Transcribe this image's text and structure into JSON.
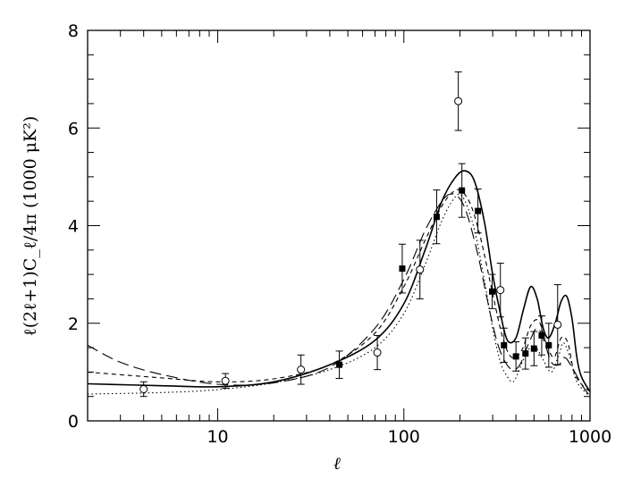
{
  "chart_data": {
    "type": "scatter",
    "xscale": "log",
    "xlim": [
      2,
      1000
    ],
    "ylim": [
      0,
      8
    ],
    "xlabel": "ℓ",
    "ylabel": "ℓ(2ℓ+1)C_ℓ/4π  (1000  μK²)",
    "grid": false,
    "legend": "none",
    "xticks": [
      {
        "value": 10,
        "label": "10"
      },
      {
        "value": 100,
        "label": "100"
      },
      {
        "value": 1000,
        "label": "1000"
      }
    ],
    "yticks": [
      {
        "value": 0,
        "label": "0"
      },
      {
        "value": 2,
        "label": "2"
      },
      {
        "value": 4,
        "label": "4"
      },
      {
        "value": 6,
        "label": "6"
      },
      {
        "value": 8,
        "label": "8"
      }
    ],
    "series": [
      {
        "style": "solid",
        "x": [
          2,
          5,
          10,
          20,
          40,
          70,
          100,
          130,
          160,
          190,
          215,
          240,
          270,
          300,
          330,
          360,
          400,
          440,
          480,
          520,
          560,
          600,
          650,
          700,
          750,
          800,
          850,
          900,
          1000
        ],
        "y": [
          0.76,
          0.72,
          0.7,
          0.8,
          1.15,
          1.65,
          2.4,
          3.5,
          4.5,
          5.0,
          5.12,
          4.9,
          4.1,
          3.0,
          2.2,
          1.65,
          1.7,
          2.3,
          2.75,
          2.5,
          1.9,
          1.7,
          2.0,
          2.45,
          2.55,
          2.1,
          1.3,
          0.9,
          0.6
        ]
      },
      {
        "style": "dotted",
        "x": [
          2,
          5,
          10,
          20,
          40,
          70,
          100,
          130,
          160,
          190,
          210,
          240,
          270,
          300,
          330,
          360,
          380,
          400,
          450,
          500,
          560,
          620,
          680,
          720,
          780,
          850,
          1000
        ],
        "y": [
          0.55,
          0.58,
          0.64,
          0.78,
          1.05,
          1.5,
          2.2,
          3.2,
          4.1,
          4.6,
          4.55,
          3.9,
          2.9,
          1.9,
          1.2,
          0.9,
          0.8,
          0.88,
          1.35,
          1.55,
          1.25,
          1.0,
          1.35,
          1.6,
          1.3,
          0.8,
          0.5
        ]
      },
      {
        "style": "short-dash",
        "x": [
          2,
          5,
          10,
          20,
          40,
          70,
          100,
          130,
          160,
          185,
          205,
          230,
          260,
          300,
          340,
          380,
          430,
          480,
          530,
          580,
          640,
          700,
          760,
          820,
          900,
          1000
        ],
        "y": [
          1.0,
          0.88,
          0.8,
          0.86,
          1.15,
          1.8,
          2.75,
          3.7,
          4.4,
          4.7,
          4.7,
          4.4,
          3.7,
          2.6,
          1.7,
          1.3,
          1.45,
          1.95,
          2.05,
          1.6,
          1.3,
          1.7,
          1.6,
          1.0,
          0.75,
          0.6
        ]
      },
      {
        "style": "long-dash",
        "x": [
          2,
          3,
          5,
          10,
          20,
          40,
          70,
          100,
          130,
          160,
          180,
          200,
          220,
          250,
          280,
          310,
          340,
          380,
          420,
          470,
          520,
          570,
          620,
          680,
          730,
          800,
          900,
          1000
        ],
        "y": [
          1.55,
          1.2,
          0.95,
          0.75,
          0.78,
          1.1,
          1.9,
          2.9,
          3.9,
          4.5,
          4.65,
          4.55,
          4.2,
          3.4,
          2.5,
          1.75,
          1.3,
          1.05,
          1.15,
          1.6,
          1.9,
          1.6,
          1.2,
          1.15,
          1.3,
          1.1,
          0.75,
          0.5
        ]
      }
    ],
    "points": [
      {
        "x": 4,
        "y": 0.65,
        "err": 0.15,
        "marker": "open-circle"
      },
      {
        "x": 11,
        "y": 0.82,
        "err": 0.15,
        "marker": "open-circle"
      },
      {
        "x": 28,
        "y": 1.05,
        "err": 0.3,
        "marker": "open-circle"
      },
      {
        "x": 45,
        "y": 1.15,
        "err": 0.28,
        "marker": "filled-square"
      },
      {
        "x": 72,
        "y": 1.4,
        "err": 0.35,
        "marker": "open-circle"
      },
      {
        "x": 98,
        "y": 3.12,
        "err": 0.5,
        "marker": "filled-square"
      },
      {
        "x": 122,
        "y": 3.1,
        "err": 0.6,
        "marker": "open-circle"
      },
      {
        "x": 150,
        "y": 4.18,
        "err": 0.55,
        "marker": "filled-square"
      },
      {
        "x": 196,
        "y": 6.55,
        "err": 0.6,
        "marker": "open-circle"
      },
      {
        "x": 205,
        "y": 4.72,
        "err": 0.55,
        "marker": "filled-square"
      },
      {
        "x": 250,
        "y": 4.3,
        "err": 0.45,
        "marker": "filled-square"
      },
      {
        "x": 298,
        "y": 2.65,
        "err": 0.35,
        "marker": "filled-square"
      },
      {
        "x": 330,
        "y": 2.68,
        "err": 0.55,
        "marker": "open-circle"
      },
      {
        "x": 345,
        "y": 1.55,
        "err": 0.35,
        "marker": "filled-square"
      },
      {
        "x": 400,
        "y": 1.32,
        "err": 0.3,
        "marker": "filled-square"
      },
      {
        "x": 450,
        "y": 1.38,
        "err": 0.32,
        "marker": "filled-square"
      },
      {
        "x": 500,
        "y": 1.48,
        "err": 0.35,
        "marker": "filled-square"
      },
      {
        "x": 550,
        "y": 1.75,
        "err": 0.4,
        "marker": "filled-square"
      },
      {
        "x": 600,
        "y": 1.55,
        "err": 0.45,
        "marker": "filled-square"
      },
      {
        "x": 670,
        "y": 1.97,
        "err": 0.82,
        "marker": "open-circle"
      }
    ]
  }
}
